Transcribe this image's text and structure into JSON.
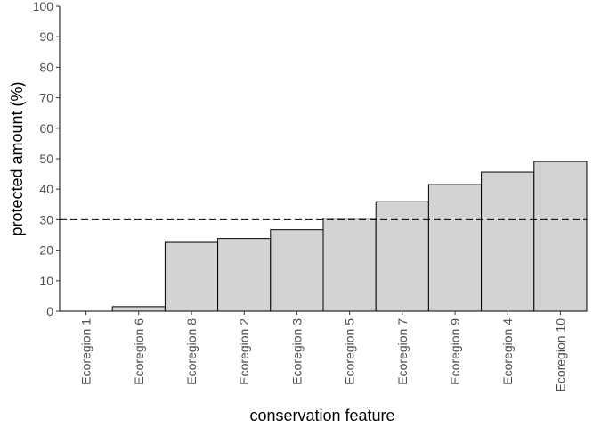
{
  "chart_data": {
    "type": "bar",
    "xlabel": "conservation feature",
    "ylabel": "protected amount (%)",
    "categories": [
      "Ecoregion 1",
      "Ecoregion 6",
      "Ecoregion 8",
      "Ecoregion 2",
      "Ecoregion 3",
      "Ecoregion 5",
      "Ecoregion 7",
      "Ecoregion 9",
      "Ecoregion 4",
      "Ecoregion 10"
    ],
    "values": [
      0,
      1.5,
      22.8,
      23.8,
      26.7,
      30.5,
      35.9,
      41.5,
      45.6,
      49.1
    ],
    "ylim": [
      0,
      100
    ],
    "yticks": [
      0,
      10,
      20,
      30,
      40,
      50,
      60,
      70,
      80,
      90,
      100
    ],
    "reference_line": {
      "y": 30,
      "style": "dashed"
    },
    "grid": false,
    "colors": {
      "bar_fill": "#d3d3d3",
      "bar_stroke": "#000000",
      "axis": "#000000",
      "tick_text": "#4d4d4d"
    }
  }
}
